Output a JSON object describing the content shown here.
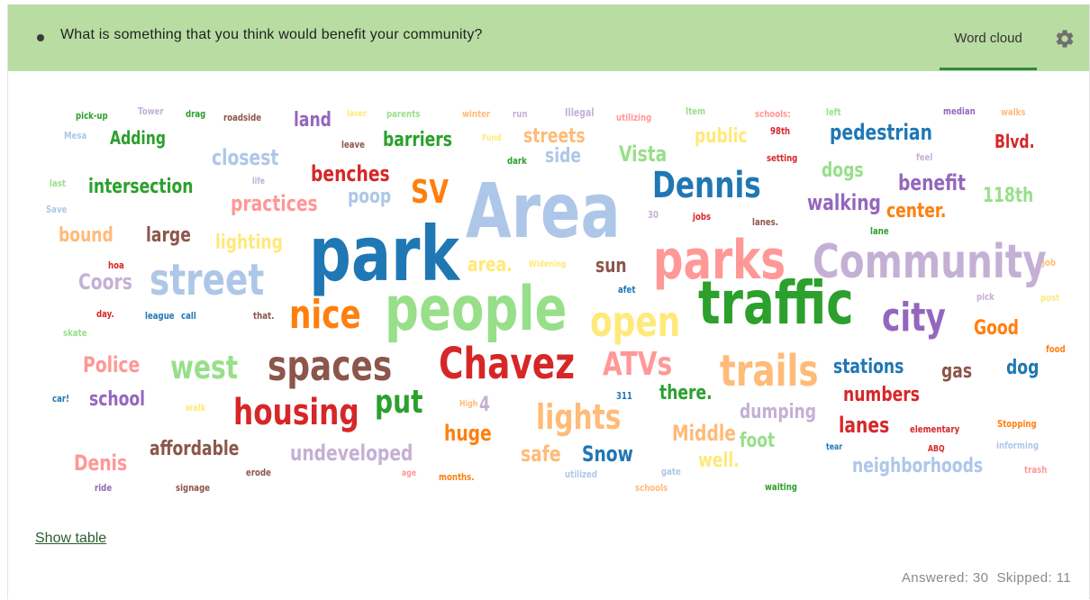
{
  "header": {
    "question": "What is something that you think would benefit your community?",
    "active_tab": "Word cloud",
    "settings_icon": "gear-icon"
  },
  "footer": {
    "show_table": "Show table",
    "answered": "Answered: 30",
    "skipped": "Skipped: 11"
  },
  "colors": {
    "header_bg": "#b9dca3",
    "tab_underline": "#2f8a3d"
  },
  "word_cloud": {
    "words": [
      {
        "text": "pick-up",
        "size": 11,
        "color": "#2ca02c"
      },
      {
        "text": "Tower",
        "size": 11,
        "color": "#c5b0d5"
      },
      {
        "text": "drag",
        "size": 11,
        "color": "#2ca02c"
      },
      {
        "text": "roadside",
        "size": 11,
        "color": "#8c564b"
      },
      {
        "text": "land",
        "size": 22,
        "color": "#9467bd"
      },
      {
        "text": "laser",
        "size": 10,
        "color": "#ffe97a"
      },
      {
        "text": "parents",
        "size": 11,
        "color": "#98df8a"
      },
      {
        "text": "winter",
        "size": 11,
        "color": "#ffbb78"
      },
      {
        "text": "run",
        "size": 11,
        "color": "#c5b0d5"
      },
      {
        "text": "Illegal",
        "size": 12,
        "color": "#c5b0d5"
      },
      {
        "text": "utilizing",
        "size": 11,
        "color": "#ff9896"
      },
      {
        "text": "Item",
        "size": 11,
        "color": "#98df8a"
      },
      {
        "text": "schools:",
        "size": 11,
        "color": "#ff9896"
      },
      {
        "text": "left",
        "size": 11,
        "color": "#98df8a"
      },
      {
        "text": "median",
        "size": 11,
        "color": "#9467bd"
      },
      {
        "text": "walks",
        "size": 11,
        "color": "#ffbb78"
      },
      {
        "text": "Mesa",
        "size": 11,
        "color": "#aec7e8"
      },
      {
        "text": "Adding",
        "size": 20,
        "color": "#2ca02c"
      },
      {
        "text": "leave",
        "size": 11,
        "color": "#8c564b"
      },
      {
        "text": "barriers",
        "size": 22,
        "color": "#2ca02c"
      },
      {
        "text": "Fund",
        "size": 10,
        "color": "#ffe97a"
      },
      {
        "text": "streets",
        "size": 22,
        "color": "#ffbb78"
      },
      {
        "text": "public",
        "size": 22,
        "color": "#ffe97a"
      },
      {
        "text": "98th",
        "size": 11,
        "color": "#d62728"
      },
      {
        "text": "pedestrian",
        "size": 24,
        "color": "#1f77b4"
      },
      {
        "text": "Blvd.",
        "size": 20,
        "color": "#d62728"
      },
      {
        "text": "closest",
        "size": 24,
        "color": "#aec7e8"
      },
      {
        "text": "dark",
        "size": 11,
        "color": "#2ca02c"
      },
      {
        "text": "side",
        "size": 22,
        "color": "#aec7e8"
      },
      {
        "text": "Vista",
        "size": 24,
        "color": "#98df8a"
      },
      {
        "text": "setting",
        "size": 11,
        "color": "#d62728"
      },
      {
        "text": "feel",
        "size": 11,
        "color": "#c5b0d5"
      },
      {
        "text": "last",
        "size": 11,
        "color": "#98df8a"
      },
      {
        "text": "life",
        "size": 10,
        "color": "#c5b0d5"
      },
      {
        "text": "benches",
        "size": 24,
        "color": "#d62728"
      },
      {
        "text": "intersection",
        "size": 22,
        "color": "#2ca02c"
      },
      {
        "text": "dogs",
        "size": 22,
        "color": "#98df8a"
      },
      {
        "text": "benefit",
        "size": 24,
        "color": "#9467bd"
      },
      {
        "text": "Save",
        "size": 11,
        "color": "#aec7e8"
      },
      {
        "text": "practices",
        "size": 24,
        "color": "#ff9896"
      },
      {
        "text": "poop",
        "size": 22,
        "color": "#aec7e8"
      },
      {
        "text": "SV",
        "size": 36,
        "color": "#ff7f0e"
      },
      {
        "text": "Area",
        "size": 84,
        "color": "#aec7e8"
      },
      {
        "text": "Dennis",
        "size": 40,
        "color": "#1f77b4"
      },
      {
        "text": "118th",
        "size": 22,
        "color": "#98df8a"
      },
      {
        "text": "walking",
        "size": 24,
        "color": "#9467bd"
      },
      {
        "text": "30",
        "size": 11,
        "color": "#c5b0d5"
      },
      {
        "text": "jobs",
        "size": 11,
        "color": "#d62728"
      },
      {
        "text": "lanes.",
        "size": 11,
        "color": "#8c564b"
      },
      {
        "text": "center.",
        "size": 22,
        "color": "#ff7f0e"
      },
      {
        "text": "lane",
        "size": 11,
        "color": "#2ca02c"
      },
      {
        "text": "bound",
        "size": 22,
        "color": "#ffbb78"
      },
      {
        "text": "large",
        "size": 22,
        "color": "#8c564b"
      },
      {
        "text": "lighting",
        "size": 22,
        "color": "#ffe97a"
      },
      {
        "text": "park",
        "size": 84,
        "color": "#1f77b4"
      },
      {
        "text": "parks",
        "size": 60,
        "color": "#ff9896"
      },
      {
        "text": "Community",
        "size": 52,
        "color": "#c5b0d5"
      },
      {
        "text": "hoa",
        "size": 11,
        "color": "#d62728"
      },
      {
        "text": "job",
        "size": 11,
        "color": "#ffbb78"
      },
      {
        "text": "Coors",
        "size": 24,
        "color": "#c5b0d5"
      },
      {
        "text": "street",
        "size": 48,
        "color": "#aec7e8"
      },
      {
        "text": "area.",
        "size": 22,
        "color": "#ffe97a"
      },
      {
        "text": "Widening",
        "size": 10,
        "color": "#ffe97a"
      },
      {
        "text": "sun",
        "size": 22,
        "color": "#8c564b"
      },
      {
        "text": "afet",
        "size": 11,
        "color": "#1f77b4"
      },
      {
        "text": "pick",
        "size": 11,
        "color": "#c5b0d5"
      },
      {
        "text": "post",
        "size": 11,
        "color": "#ffe97a"
      },
      {
        "text": "day.",
        "size": 11,
        "color": "#d62728"
      },
      {
        "text": "league",
        "size": 11,
        "color": "#1f77b4"
      },
      {
        "text": "call",
        "size": 11,
        "color": "#1f77b4"
      },
      {
        "text": "that.",
        "size": 11,
        "color": "#8c564b"
      },
      {
        "text": "nice",
        "size": 44,
        "color": "#ff7f0e"
      },
      {
        "text": "people",
        "size": 68,
        "color": "#98df8a"
      },
      {
        "text": "open",
        "size": 46,
        "color": "#ffe97a"
      },
      {
        "text": "traffic",
        "size": 66,
        "color": "#2ca02c"
      },
      {
        "text": "city",
        "size": 44,
        "color": "#9467bd"
      },
      {
        "text": "Good",
        "size": 22,
        "color": "#ff7f0e"
      },
      {
        "text": "skate",
        "size": 11,
        "color": "#98df8a"
      },
      {
        "text": "food",
        "size": 11,
        "color": "#ff7f0e"
      },
      {
        "text": "Police",
        "size": 24,
        "color": "#ff9896"
      },
      {
        "text": "west",
        "size": 36,
        "color": "#98df8a"
      },
      {
        "text": "spaces",
        "size": 46,
        "color": "#8c564b"
      },
      {
        "text": "Chavez",
        "size": 48,
        "color": "#d62728"
      },
      {
        "text": "ATVs",
        "size": 36,
        "color": "#ff9896"
      },
      {
        "text": "trails",
        "size": 48,
        "color": "#ffbb78"
      },
      {
        "text": "stations",
        "size": 22,
        "color": "#1f77b4"
      },
      {
        "text": "gas",
        "size": 22,
        "color": "#8c564b"
      },
      {
        "text": "dog",
        "size": 22,
        "color": "#1f77b4"
      },
      {
        "text": "car!",
        "size": 11,
        "color": "#1f77b4"
      },
      {
        "text": "school",
        "size": 22,
        "color": "#9467bd"
      },
      {
        "text": "walk",
        "size": 11,
        "color": "#ffe97a"
      },
      {
        "text": "housing",
        "size": 40,
        "color": "#d62728"
      },
      {
        "text": "put",
        "size": 36,
        "color": "#2ca02c"
      },
      {
        "text": "High",
        "size": 10,
        "color": "#ffbb78"
      },
      {
        "text": "4",
        "size": 22,
        "color": "#c5b0d5"
      },
      {
        "text": "311",
        "size": 11,
        "color": "#1f77b4"
      },
      {
        "text": "there.",
        "size": 22,
        "color": "#2ca02c"
      },
      {
        "text": "numbers",
        "size": 22,
        "color": "#d62728"
      },
      {
        "text": "lights",
        "size": 38,
        "color": "#ffbb78"
      },
      {
        "text": "dumping",
        "size": 22,
        "color": "#c5b0d5"
      },
      {
        "text": "huge",
        "size": 24,
        "color": "#ff7f0e"
      },
      {
        "text": "lanes",
        "size": 24,
        "color": "#d62728"
      },
      {
        "text": "elementary",
        "size": 11,
        "color": "#d62728"
      },
      {
        "text": "Stopping",
        "size": 11,
        "color": "#ff7f0e"
      },
      {
        "text": "Middle",
        "size": 24,
        "color": "#ffbb78"
      },
      {
        "text": "foot",
        "size": 22,
        "color": "#98df8a"
      },
      {
        "text": "tear",
        "size": 10,
        "color": "#1f77b4"
      },
      {
        "text": "ABQ",
        "size": 10,
        "color": "#d62728"
      },
      {
        "text": "informing",
        "size": 11,
        "color": "#aec7e8"
      },
      {
        "text": "affordable",
        "size": 22,
        "color": "#8c564b"
      },
      {
        "text": "undeveloped",
        "size": 24,
        "color": "#c5b0d5"
      },
      {
        "text": "safe",
        "size": 24,
        "color": "#ffbb78"
      },
      {
        "text": "Snow",
        "size": 24,
        "color": "#1f77b4"
      },
      {
        "text": "Denis",
        "size": 24,
        "color": "#ff9896"
      },
      {
        "text": "well.",
        "size": 22,
        "color": "#ffe97a"
      },
      {
        "text": "neighborhoods",
        "size": 22,
        "color": "#aec7e8"
      },
      {
        "text": "trash",
        "size": 11,
        "color": "#ff9896"
      },
      {
        "text": "erode",
        "size": 11,
        "color": "#8c564b"
      },
      {
        "text": "age",
        "size": 10,
        "color": "#ff9896"
      },
      {
        "text": "months.",
        "size": 11,
        "color": "#ff7f0e"
      },
      {
        "text": "utilized",
        "size": 11,
        "color": "#aec7e8"
      },
      {
        "text": "gate",
        "size": 11,
        "color": "#aec7e8"
      },
      {
        "text": "ride",
        "size": 11,
        "color": "#9467bd"
      },
      {
        "text": "signage",
        "size": 11,
        "color": "#8c564b"
      },
      {
        "text": "schools",
        "size": 11,
        "color": "#ffbb78"
      },
      {
        "text": "waiting",
        "size": 11,
        "color": "#2ca02c"
      }
    ]
  }
}
